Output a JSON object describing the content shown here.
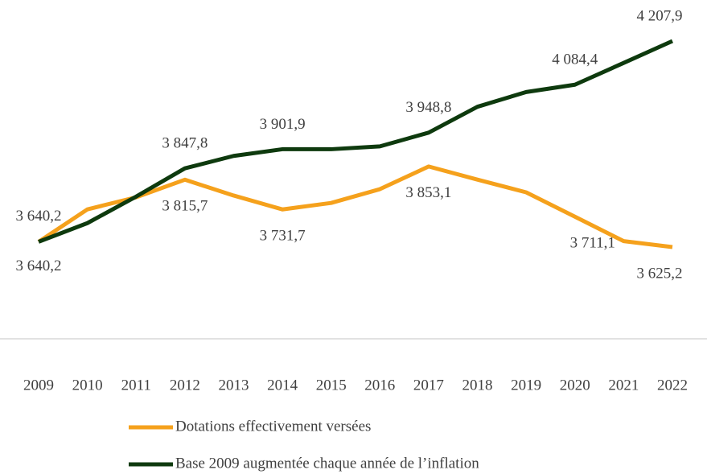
{
  "chart_data": {
    "type": "line",
    "categories": [
      "2009",
      "2010",
      "2011",
      "2012",
      "2013",
      "2014",
      "2015",
      "2016",
      "2017",
      "2018",
      "2019",
      "2020",
      "2021",
      "2022"
    ],
    "series": [
      {
        "name": "Dotations effectivement versées",
        "color": "#f5a11c",
        "values": [
          3640.2,
          3731.8,
          3766,
          3815.7,
          3771,
          3731.7,
          3750,
          3789,
          3853.1,
          3816,
          3780,
          3711.1,
          3642,
          3625.2
        ],
        "value_labels": [
          "3 640,2",
          null,
          null,
          "3 815,7",
          null,
          "3 731,7",
          null,
          null,
          "3 853,1",
          null,
          null,
          "3 711,1",
          null,
          "3 625,2"
        ]
      },
      {
        "name": "Base 2009 augmentée chaque année de l’inflation",
        "color": "#0e3a0e",
        "values": [
          3640.2,
          3692.9,
          3768,
          3847.8,
          3883,
          3901.9,
          3901.9,
          3910,
          3948.8,
          4022,
          4063.7,
          4084.4,
          4146,
          4207.9
        ],
        "value_labels": [
          "3 640,2",
          null,
          null,
          "3 847,8",
          null,
          "3 901,9",
          null,
          null,
          "3 948,8",
          null,
          null,
          "4 084,4",
          null,
          "4 207,9"
        ]
      }
    ],
    "legend": "bottom"
  }
}
